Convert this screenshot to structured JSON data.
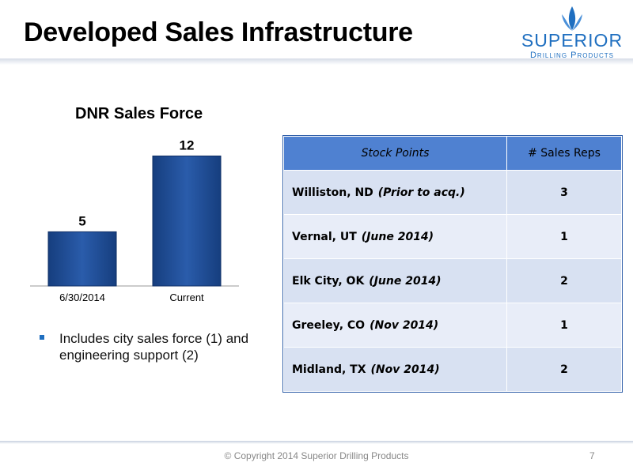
{
  "slide": {
    "title": "Developed Sales Infrastructure",
    "page_number": "7",
    "copyright": "© Copyright 2014 Superior Drilling Products"
  },
  "logo": {
    "word": "SUPERIOR",
    "sub": "Drilling Products",
    "icon": "drill-bit-icon",
    "color": "#1f6fc0"
  },
  "chart_data": {
    "type": "bar",
    "title": "DNR Sales Force",
    "categories": [
      "6/30/2014",
      "Current"
    ],
    "values": [
      5,
      12
    ],
    "data_labels": [
      "5",
      "12"
    ],
    "xlabel": "",
    "ylabel": "",
    "ylim": [
      0,
      14
    ],
    "grid": false,
    "color": "#1f4f9a"
  },
  "bullet": {
    "text": "Includes city sales force (1) and engineering support (2)"
  },
  "table": {
    "headers": [
      "Stock Points",
      "# Sales Reps"
    ],
    "rows": [
      {
        "location": "Williston, ND",
        "when": "(Prior to acq.)",
        "reps": "3"
      },
      {
        "location": "Vernal, UT",
        "when": "(June 2014)",
        "reps": "1"
      },
      {
        "location": "Elk City, OK",
        "when": "(June 2014)",
        "reps": "2"
      },
      {
        "location": "Greeley, CO",
        "when": "(Nov 2014)",
        "reps": "1"
      },
      {
        "location": "Midland, TX",
        "when": "(Nov 2014)",
        "reps": "2"
      }
    ]
  }
}
